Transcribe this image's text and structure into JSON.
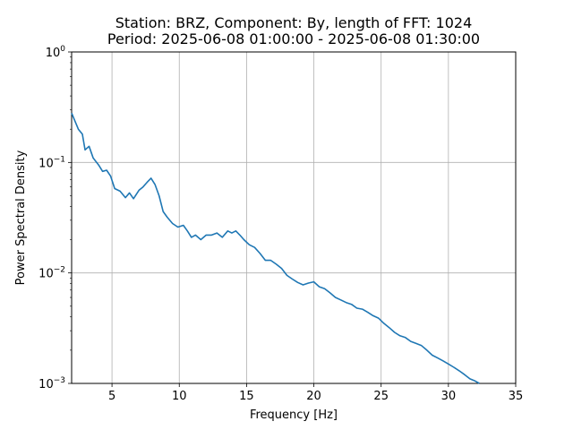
{
  "chart_data": {
    "type": "line",
    "title": "Station: BRZ, Component: By, length of FFT: 1024",
    "subtitle": "Period: 2025-06-08 01:00:00 - 2025-06-08 01:30:00",
    "xlabel": "Frequency [Hz]",
    "ylabel": "Power Spectral Density",
    "xlim": [
      2,
      35
    ],
    "ylim": [
      0.001,
      1
    ],
    "yscale": "log",
    "grid": true,
    "line_color": "#1f77b4",
    "x_ticks": [
      5,
      10,
      15,
      20,
      25,
      30,
      35
    ],
    "x_tick_labels": [
      "5",
      "10",
      "15",
      "20",
      "25",
      "30",
      "35"
    ],
    "y_ticks": [
      0.001,
      0.01,
      0.1,
      1
    ],
    "y_tick_labels": [
      {
        "base": "10",
        "exp": "−3"
      },
      {
        "base": "10",
        "exp": "−2"
      },
      {
        "base": "10",
        "exp": "−1"
      },
      {
        "base": "10",
        "exp": "0"
      }
    ],
    "series": [
      {
        "x": [
          2.0,
          2.5,
          2.8,
          3.0,
          3.3,
          3.6,
          4.0,
          4.3,
          4.6,
          4.9,
          5.2,
          5.6,
          6.0,
          6.3,
          6.6,
          7.0,
          7.3,
          7.6,
          7.9,
          8.2,
          8.5,
          8.8,
          9.1,
          9.5,
          9.9,
          10.3,
          10.6,
          10.9,
          11.2,
          11.6,
          12.0,
          12.4,
          12.8,
          13.2,
          13.6,
          13.9,
          14.2,
          14.5,
          14.8,
          15.2,
          15.6,
          16.0,
          16.4,
          16.8,
          17.2,
          17.6,
          18.0,
          18.4,
          18.8,
          19.2,
          19.6,
          20.0,
          20.4,
          20.8,
          21.2,
          21.6,
          22.0,
          22.4,
          22.8,
          23.2,
          23.6,
          24.0,
          24.4,
          24.8,
          25.2,
          25.6,
          26.0,
          26.4,
          26.8,
          27.2,
          27.6,
          28.0,
          28.4,
          28.8,
          29.2,
          29.6,
          30.0,
          30.4,
          30.8,
          31.2,
          31.6,
          32.0,
          32.3
        ],
        "y": [
          0.28,
          0.2,
          0.18,
          0.13,
          0.14,
          0.11,
          0.095,
          0.083,
          0.085,
          0.075,
          0.058,
          0.055,
          0.048,
          0.053,
          0.047,
          0.056,
          0.06,
          0.066,
          0.072,
          0.063,
          0.05,
          0.036,
          0.032,
          0.028,
          0.026,
          0.027,
          0.024,
          0.021,
          0.022,
          0.02,
          0.022,
          0.022,
          0.023,
          0.021,
          0.024,
          0.023,
          0.024,
          0.022,
          0.02,
          0.018,
          0.017,
          0.015,
          0.013,
          0.013,
          0.012,
          0.011,
          0.0095,
          0.0088,
          0.0082,
          0.0078,
          0.0081,
          0.0083,
          0.0075,
          0.0072,
          0.0066,
          0.006,
          0.0057,
          0.0054,
          0.0052,
          0.0048,
          0.0047,
          0.0044,
          0.0041,
          0.0039,
          0.0035,
          0.0032,
          0.0029,
          0.0027,
          0.0026,
          0.0024,
          0.0023,
          0.0022,
          0.002,
          0.0018,
          0.0017,
          0.0016,
          0.0015,
          0.0014,
          0.0013,
          0.0012,
          0.0011,
          0.00105,
          0.001
        ]
      }
    ]
  }
}
